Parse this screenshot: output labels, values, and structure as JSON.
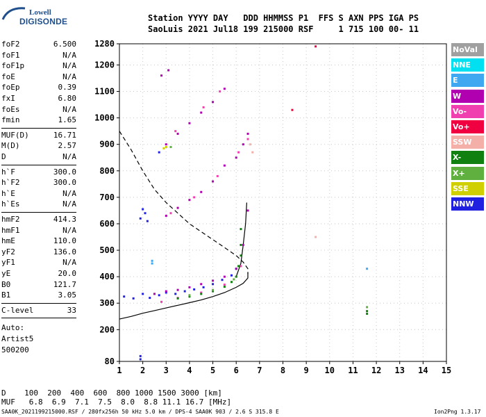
{
  "logo": {
    "line1": "Lowell",
    "line2": "DIGISONDE"
  },
  "header": {
    "line1": "Station YYYY DAY   DDD HHMMSS P1  FFS S AXN PPS IGA PS",
    "line2": "SaoLuis 2021 Jul18 199 215000 RSF     1 715 100 00- 11"
  },
  "params": {
    "group1": [
      {
        "label": "foF2",
        "value": "6.500"
      },
      {
        "label": "foF1",
        "value": "N/A"
      },
      {
        "label": "foF1p",
        "value": "N/A"
      },
      {
        "label": "foE",
        "value": "N/A"
      },
      {
        "label": "foEp",
        "value": "0.39"
      },
      {
        "label": "fxI",
        "value": "6.80"
      },
      {
        "label": "foEs",
        "value": "N/A"
      },
      {
        "label": "fmin",
        "value": "1.65"
      }
    ],
    "group2": [
      {
        "label": "MUF(D)",
        "value": "16.71"
      },
      {
        "label": "M(D)",
        "value": "2.57"
      },
      {
        "label": "D",
        "value": "N/A"
      }
    ],
    "group3": [
      {
        "label": "h`F",
        "value": "300.0"
      },
      {
        "label": "h`F2",
        "value": "300.0"
      },
      {
        "label": "h`E",
        "value": "N/A"
      },
      {
        "label": "h`Es",
        "value": "N/A"
      }
    ],
    "group4": [
      {
        "label": "hmF2",
        "value": "414.3"
      },
      {
        "label": "hmF1",
        "value": "N/A"
      },
      {
        "label": "hmE",
        "value": "110.0"
      },
      {
        "label": "yF2",
        "value": "136.0"
      },
      {
        "label": "yF1",
        "value": "N/A"
      },
      {
        "label": "yE",
        "value": "20.0"
      },
      {
        "label": "B0",
        "value": "121.7"
      },
      {
        "label": "B1",
        "value": "3.05"
      }
    ],
    "group5": [
      {
        "label": "C-level",
        "value": "33"
      }
    ],
    "auto_lines": [
      "Auto:",
      "Artist5",
      "500200"
    ]
  },
  "legend": [
    {
      "label": "NoVal",
      "color": "#a0a0a0"
    },
    {
      "label": "NNE",
      "color": "#00e0f0"
    },
    {
      "label": "E",
      "color": "#3fa8f0"
    },
    {
      "label": "W",
      "color": "#b000b0"
    },
    {
      "label": "Vo-",
      "color": "#f040b0"
    },
    {
      "label": "Vo+",
      "color": "#f00040"
    },
    {
      "label": "SSW",
      "color": "#f4b0a8"
    },
    {
      "label": "X-",
      "color": "#108010"
    },
    {
      "label": "X+",
      "color": "#60b040"
    },
    {
      "label": "SSE",
      "color": "#d0d000"
    },
    {
      "label": "NNW",
      "color": "#2020e0"
    }
  ],
  "bottom": {
    "d_line": "D    100  200  400  600  800 1000 1500 3000 [km]",
    "muf_line": "MUF   6.8  6.9  7.1  7.5  8.0  8.8 11.1 16.7 [MHz]"
  },
  "footer": {
    "left": "SAA0K_2021199215000.RSF / 280fx256h 50 kHz 5.0 km / DPS-4 SAA0K 903 / 2.6 S 315.8 E",
    "right": "Ion2Png 1.3.17"
  },
  "chart_data": {
    "type": "scatter",
    "title": "",
    "xlabel": "",
    "ylabel": "",
    "xlim": [
      1,
      15
    ],
    "ylim": [
      80,
      1280
    ],
    "xticks": [
      1,
      2,
      3,
      4,
      5,
      6,
      7,
      8,
      9,
      10,
      11,
      12,
      13,
      14,
      15
    ],
    "yticks": [
      80,
      200,
      300,
      400,
      500,
      600,
      700,
      800,
      900,
      1000,
      1100,
      1200,
      1280
    ],
    "grid": true,
    "series": [
      {
        "color": "#2020e0",
        "points": [
          [
            1.2,
            325
          ],
          [
            1.6,
            318
          ],
          [
            2.0,
            335
          ],
          [
            2.3,
            320
          ],
          [
            2.7,
            330
          ],
          [
            3.0,
            340
          ],
          [
            3.4,
            335
          ],
          [
            3.8,
            345
          ],
          [
            4.2,
            352
          ],
          [
            4.6,
            360
          ],
          [
            5.0,
            372
          ],
          [
            5.4,
            388
          ],
          [
            5.8,
            405
          ],
          [
            6.0,
            430
          ],
          [
            1.9,
            620
          ],
          [
            2.1,
            640
          ],
          [
            2.2,
            610
          ],
          [
            2.0,
            655
          ],
          [
            2.7,
            870
          ],
          [
            1.9,
            100
          ],
          [
            1.9,
            88
          ]
        ]
      },
      {
        "color": "#b000b0",
        "points": [
          [
            2.5,
            335
          ],
          [
            3.0,
            345
          ],
          [
            3.5,
            350
          ],
          [
            4.0,
            360
          ],
          [
            4.5,
            372
          ],
          [
            5.0,
            385
          ],
          [
            5.5,
            400
          ],
          [
            6.0,
            430
          ],
          [
            6.3,
            520
          ],
          [
            6.5,
            650
          ],
          [
            3.0,
            630
          ],
          [
            3.5,
            660
          ],
          [
            4.0,
            690
          ],
          [
            4.5,
            720
          ],
          [
            5.0,
            760
          ],
          [
            5.5,
            820
          ],
          [
            6.0,
            850
          ],
          [
            6.3,
            900
          ],
          [
            6.5,
            940
          ],
          [
            3.0,
            900
          ],
          [
            3.5,
            940
          ],
          [
            4.0,
            980
          ],
          [
            4.5,
            1020
          ],
          [
            5.0,
            1060
          ],
          [
            5.5,
            1110
          ],
          [
            2.8,
            1160
          ],
          [
            3.1,
            1180
          ]
        ]
      },
      {
        "color": "#f040b0",
        "points": [
          [
            2.8,
            305
          ],
          [
            3.5,
            320
          ],
          [
            4.5,
            340
          ],
          [
            5.5,
            370
          ],
          [
            6.2,
            440
          ],
          [
            3.2,
            640
          ],
          [
            4.2,
            700
          ],
          [
            5.2,
            780
          ],
          [
            6.1,
            870
          ],
          [
            6.5,
            920
          ],
          [
            3.4,
            950
          ],
          [
            4.6,
            1040
          ],
          [
            5.3,
            1100
          ]
        ]
      },
      {
        "color": "#108010",
        "points": [
          [
            3.5,
            318
          ],
          [
            4.0,
            325
          ],
          [
            4.5,
            335
          ],
          [
            5.0,
            345
          ],
          [
            5.5,
            362
          ],
          [
            5.8,
            380
          ],
          [
            6.0,
            400
          ],
          [
            6.1,
            440
          ],
          [
            6.2,
            480
          ],
          [
            6.2,
            520
          ],
          [
            6.2,
            580
          ],
          [
            11.6,
            270
          ],
          [
            11.6,
            260
          ]
        ]
      },
      {
        "color": "#60b040",
        "points": [
          [
            4.0,
            330
          ],
          [
            5.0,
            350
          ],
          [
            5.9,
            390
          ],
          [
            3.2,
            890
          ],
          [
            11.6,
            285
          ]
        ]
      },
      {
        "color": "#d0d000",
        "points": [
          [
            2.9,
            885
          ],
          [
            3.0,
            890
          ]
        ]
      },
      {
        "color": "#f4b0a8",
        "points": [
          [
            6.6,
            900
          ],
          [
            6.7,
            870
          ],
          [
            9.4,
            550
          ]
        ]
      },
      {
        "color": "#3fa8f0",
        "points": [
          [
            2.4,
            450
          ],
          [
            2.4,
            460
          ],
          [
            11.6,
            430
          ]
        ]
      },
      {
        "color": "#f00040",
        "points": [
          [
            8.4,
            1030
          ],
          [
            9.4,
            1270
          ]
        ]
      }
    ],
    "curves": [
      {
        "name": "",
        "style": "dashed",
        "points": [
          [
            1,
            950
          ],
          [
            1.5,
            880
          ],
          [
            2,
            800
          ],
          [
            2.5,
            730
          ],
          [
            3,
            680
          ],
          [
            3.5,
            640
          ],
          [
            4,
            600
          ],
          [
            4.5,
            570
          ],
          [
            5,
            540
          ],
          [
            5.5,
            510
          ],
          [
            6,
            480
          ],
          [
            6.3,
            455
          ],
          [
            6.5,
            430
          ],
          [
            6.5,
            410
          ]
        ]
      },
      {
        "name": "",
        "style": "solid",
        "points": [
          [
            1,
            240
          ],
          [
            1.5,
            250
          ],
          [
            2,
            262
          ],
          [
            2.5,
            272
          ],
          [
            3,
            282
          ],
          [
            3.5,
            292
          ],
          [
            4,
            302
          ],
          [
            4.5,
            312
          ],
          [
            5,
            325
          ],
          [
            5.5,
            340
          ],
          [
            6,
            360
          ],
          [
            6.3,
            375
          ],
          [
            6.5,
            395
          ],
          [
            6.5,
            415
          ]
        ]
      },
      {
        "name": "",
        "style": "solid",
        "points": [
          [
            6.0,
            400
          ],
          [
            6.2,
            450
          ],
          [
            6.3,
            520
          ],
          [
            6.4,
            600
          ],
          [
            6.45,
            680
          ]
        ]
      }
    ]
  }
}
